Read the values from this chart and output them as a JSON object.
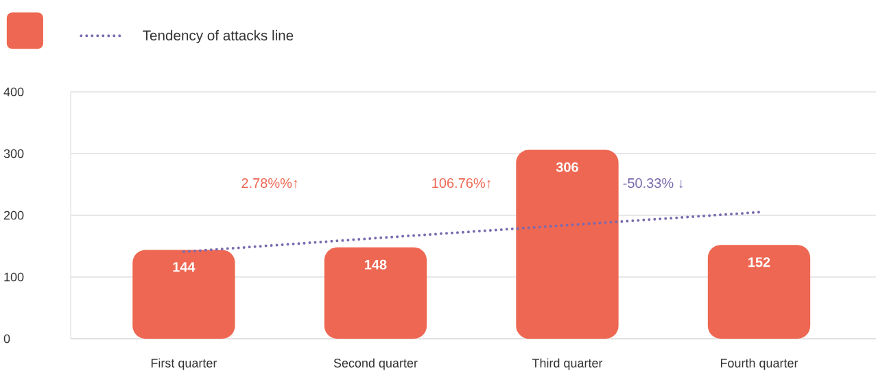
{
  "chart_data": {
    "type": "bar",
    "categories": [
      "First quarter",
      "Second quarter",
      "Third quarter",
      "Fourth quarter"
    ],
    "series": [
      {
        "color": "#ee6752",
        "values": [
          144,
          148,
          306,
          152
        ],
        "value_labels": [
          "144",
          "148",
          "306",
          "152"
        ]
      },
      {
        "type": "line",
        "name": "Tendency of attacks line",
        "color": "#7a6aaf",
        "values": [
          141,
          163,
          184,
          205
        ],
        "line_style": "dotted",
        "marker": "none"
      }
    ],
    "ylim": [
      0,
      400
    ],
    "yticks": [
      0,
      100,
      200,
      300,
      400
    ],
    "grid": "y",
    "legend": "top left",
    "annotations": [
      "2.78%%↑",
      "106.76%↑",
      "-50.33% ↓"
    ]
  }
}
